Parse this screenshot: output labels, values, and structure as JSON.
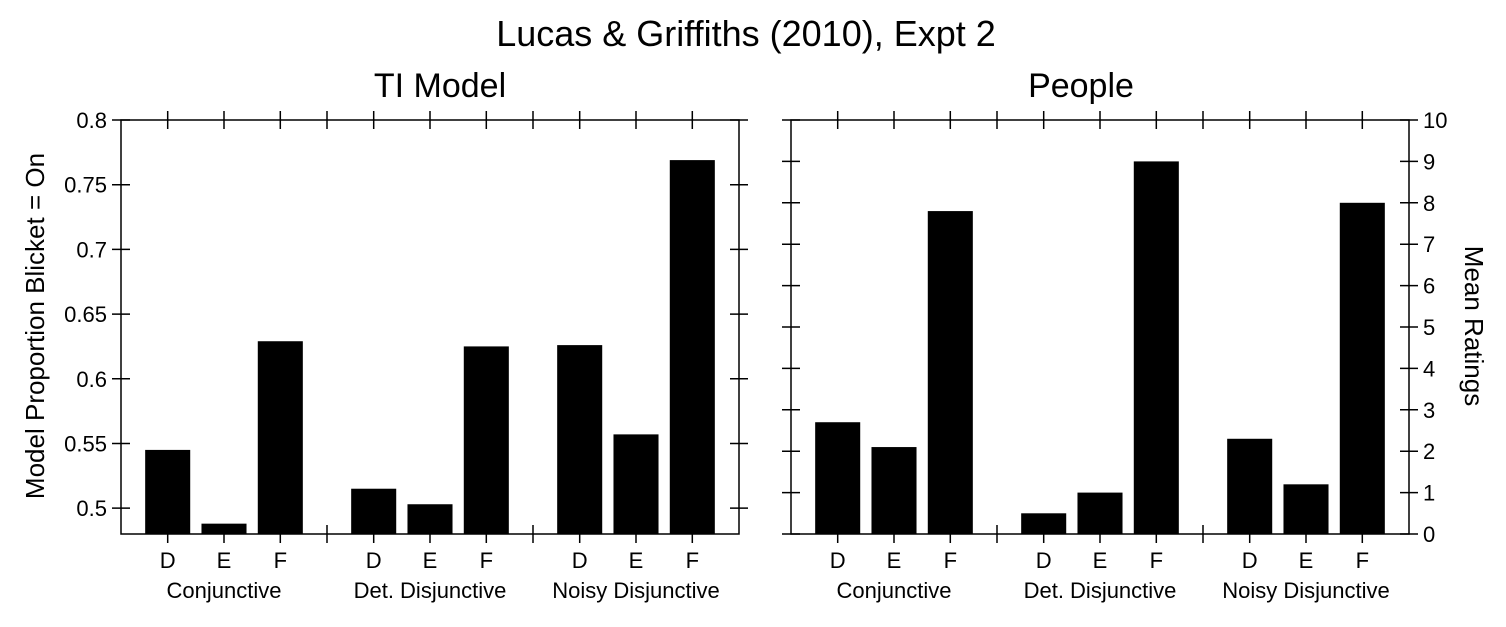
{
  "figure": {
    "title": "Lucas & Griffiths (2010), Expt 2"
  },
  "chart_data": [
    {
      "type": "bar",
      "title": "TI Model",
      "ylabel": "Model Proportion Blicket = On",
      "xlabel": "",
      "ylim": [
        0.48,
        0.8
      ],
      "yticks": [
        0.5,
        0.55,
        0.6,
        0.65,
        0.7,
        0.75,
        0.8
      ],
      "ytick_labels": [
        "0.5",
        "0.55",
        "0.6",
        "0.65",
        "0.7",
        "0.75",
        "0.8"
      ],
      "categories": [
        "D",
        "E",
        "F"
      ],
      "groups": [
        {
          "label": "Conjunctive",
          "values": [
            0.545,
            0.488,
            0.629
          ]
        },
        {
          "label": "Det. Disjunctive",
          "values": [
            0.515,
            0.503,
            0.625
          ]
        },
        {
          "label": "Noisy Disjunctive",
          "values": [
            0.626,
            0.557,
            0.769
          ]
        }
      ],
      "grid": false,
      "legend": "none"
    },
    {
      "type": "bar",
      "title": "People",
      "ylabel": "Mean Ratings",
      "xlabel": "",
      "ylim": [
        0,
        10
      ],
      "yticks": [
        0,
        1,
        2,
        3,
        4,
        5,
        6,
        7,
        8,
        9,
        10
      ],
      "ytick_labels": [
        "0",
        "1",
        "2",
        "3",
        "4",
        "5",
        "6",
        "7",
        "8",
        "9",
        "10"
      ],
      "categories": [
        "D",
        "E",
        "F"
      ],
      "groups": [
        {
          "label": "Conjunctive",
          "values": [
            2.7,
            2.1,
            7.8
          ]
        },
        {
          "label": "Det. Disjunctive",
          "values": [
            0.5,
            1.0,
            9.0
          ]
        },
        {
          "label": "Noisy Disjunctive",
          "values": [
            2.3,
            1.2,
            8.0
          ]
        }
      ],
      "grid": false,
      "legend": "none"
    }
  ]
}
